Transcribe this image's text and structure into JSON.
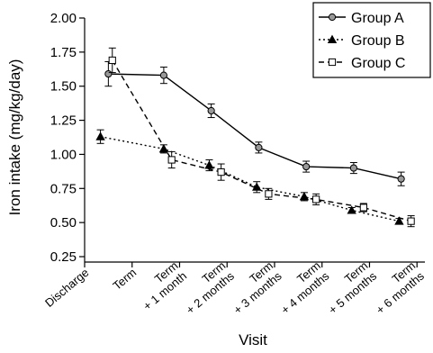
{
  "chart_data": {
    "type": "line",
    "title": "",
    "xlabel": "Visit",
    "ylabel": "Iron intake (mg/kg/day)",
    "ylim": [
      0.25,
      2.0
    ],
    "yticks": [
      "0.25",
      "0.50",
      "0.75",
      "1.00",
      "1.25",
      "1.50",
      "1.75",
      "2.00"
    ],
    "categories": [
      "Discharge",
      "Term",
      "Term + 1 month",
      "Term + 2 months",
      "Term + 3 months",
      "Term + 4 months",
      "Term + 5 months",
      "Term + 6 months"
    ],
    "category_lines": [
      [
        "Discharge"
      ],
      [
        "Term"
      ],
      [
        "Term",
        "+ 1 month"
      ],
      [
        "Term",
        "+ 2 months"
      ],
      [
        "Term",
        "+ 3 months"
      ],
      [
        "Term",
        "+ 4 months"
      ],
      [
        "Term",
        "+ 5 months"
      ],
      [
        "Term",
        "+ 6 months"
      ]
    ],
    "legend_position": "top-right",
    "grid": false,
    "series": [
      {
        "name": "Group A",
        "marker": "circle",
        "line_style": "solid",
        "points": [
          {
            "x": 0.6,
            "y": 1.59,
            "err": 0.09
          },
          {
            "x": 2.0,
            "y": 1.58,
            "err": 0.06
          },
          {
            "x": 3.2,
            "y": 1.32,
            "err": 0.05
          },
          {
            "x": 4.4,
            "y": 1.05,
            "err": 0.04
          },
          {
            "x": 5.6,
            "y": 0.91,
            "err": 0.04
          },
          {
            "x": 6.8,
            "y": 0.9,
            "err": 0.04
          },
          {
            "x": 8.0,
            "y": 0.82,
            "err": 0.05
          }
        ]
      },
      {
        "name": "Group B",
        "marker": "triangle",
        "line_style": "dotted",
        "points": [
          {
            "x": 0.4,
            "y": 1.13,
            "err": 0.05
          },
          {
            "x": 2.0,
            "y": 1.04,
            "err": 0.03
          },
          {
            "x": 3.15,
            "y": 0.92,
            "err": 0.04
          },
          {
            "x": 4.35,
            "y": 0.76,
            "err": 0.04
          },
          {
            "x": 5.55,
            "y": 0.69,
            "err": 0.03
          },
          {
            "x": 6.75,
            "y": 0.59,
            "err": 0.02
          },
          {
            "x": 7.95,
            "y": 0.51,
            "err": 0.02
          }
        ]
      },
      {
        "name": "Group C",
        "marker": "square",
        "line_style": "dashed",
        "points": [
          {
            "x": 0.7,
            "y": 1.69,
            "err": 0.09
          },
          {
            "x": 2.2,
            "y": 0.96,
            "err": 0.06
          },
          {
            "x": 3.45,
            "y": 0.87,
            "err": 0.06
          },
          {
            "x": 4.65,
            "y": 0.71,
            "err": 0.04
          },
          {
            "x": 5.85,
            "y": 0.67,
            "err": 0.04
          },
          {
            "x": 7.05,
            "y": 0.61,
            "err": 0.03
          },
          {
            "x": 8.25,
            "y": 0.51,
            "err": 0.04
          }
        ]
      }
    ]
  }
}
